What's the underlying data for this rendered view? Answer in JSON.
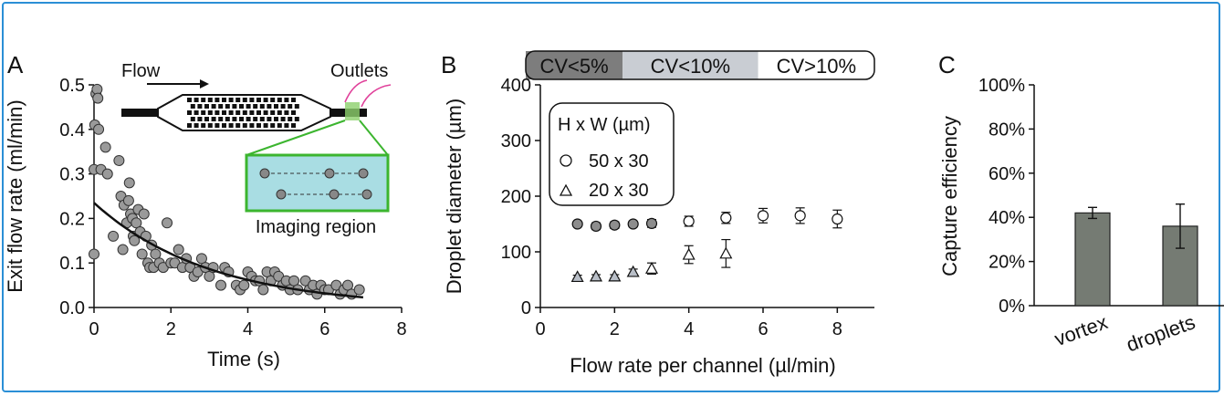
{
  "chart_data": [
    {
      "panel_label": "A",
      "type": "scatter",
      "xlabel": "Time (s)",
      "ylabel": "Exit flow rate (ml/min)",
      "xlim": [
        0,
        8
      ],
      "ylim": [
        0,
        0.5
      ],
      "xticks": [
        "0",
        "2",
        "4",
        "6",
        "8"
      ],
      "yticks": [
        "0.0",
        "0.1",
        "0.2",
        "0.3",
        "0.4",
        "0.5"
      ],
      "fit_curve": {
        "a": 0.235,
        "tau": 3.0,
        "x_range": [
          0,
          7
        ]
      },
      "points": [
        [
          0.0,
          0.12
        ],
        [
          0.0,
          0.31
        ],
        [
          0.02,
          0.41
        ],
        [
          0.05,
          0.48
        ],
        [
          0.08,
          0.49
        ],
        [
          0.1,
          0.47
        ],
        [
          0.12,
          0.4
        ],
        [
          0.18,
          0.31
        ],
        [
          0.3,
          0.36
        ],
        [
          0.35,
          0.3
        ],
        [
          0.5,
          0.16
        ],
        [
          0.65,
          0.33
        ],
        [
          0.7,
          0.25
        ],
        [
          0.75,
          0.13
        ],
        [
          0.78,
          0.23
        ],
        [
          0.85,
          0.19
        ],
        [
          0.9,
          0.24
        ],
        [
          0.92,
          0.28
        ],
        [
          0.95,
          0.21
        ],
        [
          1.0,
          0.2
        ],
        [
          1.02,
          0.16
        ],
        [
          1.05,
          0.15
        ],
        [
          1.1,
          0.19
        ],
        [
          1.15,
          0.22
        ],
        [
          1.2,
          0.17
        ],
        [
          1.25,
          0.12
        ],
        [
          1.3,
          0.21
        ],
        [
          1.35,
          0.16
        ],
        [
          1.4,
          0.1
        ],
        [
          1.45,
          0.09
        ],
        [
          1.5,
          0.14
        ],
        [
          1.55,
          0.09
        ],
        [
          1.6,
          0.12
        ],
        [
          1.7,
          0.1
        ],
        [
          1.8,
          0.09
        ],
        [
          1.9,
          0.19
        ],
        [
          2.0,
          0.1
        ],
        [
          2.1,
          0.1
        ],
        [
          2.2,
          0.13
        ],
        [
          2.3,
          0.09
        ],
        [
          2.4,
          0.11
        ],
        [
          2.5,
          0.09
        ],
        [
          2.6,
          0.07
        ],
        [
          2.7,
          0.08
        ],
        [
          2.8,
          0.11
        ],
        [
          2.9,
          0.09
        ],
        [
          3.0,
          0.07
        ],
        [
          3.1,
          0.09
        ],
        [
          3.3,
          0.05
        ],
        [
          3.4,
          0.09
        ],
        [
          3.5,
          0.08
        ],
        [
          3.7,
          0.05
        ],
        [
          3.8,
          0.04
        ],
        [
          3.9,
          0.05
        ],
        [
          4.0,
          0.08
        ],
        [
          4.1,
          0.07
        ],
        [
          4.2,
          0.06
        ],
        [
          4.3,
          0.06
        ],
        [
          4.4,
          0.04
        ],
        [
          4.5,
          0.08
        ],
        [
          4.6,
          0.06
        ],
        [
          4.7,
          0.08
        ],
        [
          4.8,
          0.07
        ],
        [
          4.9,
          0.05
        ],
        [
          5.0,
          0.06
        ],
        [
          5.1,
          0.04
        ],
        [
          5.2,
          0.06
        ],
        [
          5.3,
          0.04
        ],
        [
          5.5,
          0.06
        ],
        [
          5.6,
          0.04
        ],
        [
          5.7,
          0.05
        ],
        [
          5.8,
          0.03
        ],
        [
          5.9,
          0.05
        ],
        [
          6.0,
          0.04
        ],
        [
          6.1,
          0.04
        ],
        [
          6.3,
          0.05
        ],
        [
          6.4,
          0.03
        ],
        [
          6.5,
          0.04
        ],
        [
          6.6,
          0.05
        ],
        [
          6.7,
          0.03
        ],
        [
          6.9,
          0.04
        ]
      ],
      "inset": {
        "flow_label": "Flow",
        "outlets_label": "Outlets",
        "imaging_label": "Imaging region"
      }
    },
    {
      "panel_label": "B",
      "type": "scatter",
      "xlabel": "Flow rate per channel  (µl/min)",
      "ylabel": "Droplet diameter (µm)",
      "xlim": [
        0,
        9
      ],
      "ylim": [
        0,
        400
      ],
      "xticks": [
        "0",
        "2",
        "4",
        "6",
        "8"
      ],
      "yticks": [
        "0",
        "100",
        "200",
        "300",
        "400"
      ],
      "cv_bar": [
        {
          "label": "CV<5%",
          "from": 0,
          "to": 2.5,
          "color": "#7d7d7d"
        },
        {
          "label": "CV<10%",
          "from": 2.5,
          "to": 6.0,
          "color": "#c9cdd3"
        },
        {
          "label": "CV>10%",
          "from": 6.0,
          "to": 9.0,
          "color": "#ffffff"
        }
      ],
      "legend_title": "H x W (µm)",
      "series": [
        {
          "name": "50 x 30",
          "marker": "circle",
          "x": [
            1,
            1.5,
            2,
            2.5,
            3,
            4,
            5,
            6,
            7,
            8
          ],
          "y": [
            150,
            146,
            148,
            150,
            151,
            155,
            161,
            165,
            165,
            159
          ],
          "err": [
            4,
            6,
            6,
            5,
            7,
            9,
            10,
            13,
            14,
            16
          ],
          "filled": [
            true,
            true,
            true,
            true,
            true,
            false,
            false,
            false,
            false,
            false
          ]
        },
        {
          "name": "20 x 30",
          "marker": "triangle",
          "x": [
            1,
            1.5,
            2,
            2.5,
            3,
            4,
            5
          ],
          "y": [
            55,
            56,
            56,
            64,
            70,
            95,
            97
          ],
          "err": [
            3,
            3,
            3,
            5,
            10,
            16,
            25
          ],
          "filled": [
            true,
            true,
            true,
            true,
            false,
            false,
            false
          ]
        }
      ]
    },
    {
      "panel_label": "C",
      "type": "bar",
      "ylabel": "Capture efficiency",
      "ylim": [
        0,
        100
      ],
      "yticks": [
        "0%",
        "20%",
        "40%",
        "60%",
        "80%",
        "100%"
      ],
      "categories": [
        "vortex",
        "droplets"
      ],
      "values": [
        42,
        36
      ],
      "errors": [
        2.5,
        10
      ],
      "bar_color": "#757b73"
    }
  ]
}
